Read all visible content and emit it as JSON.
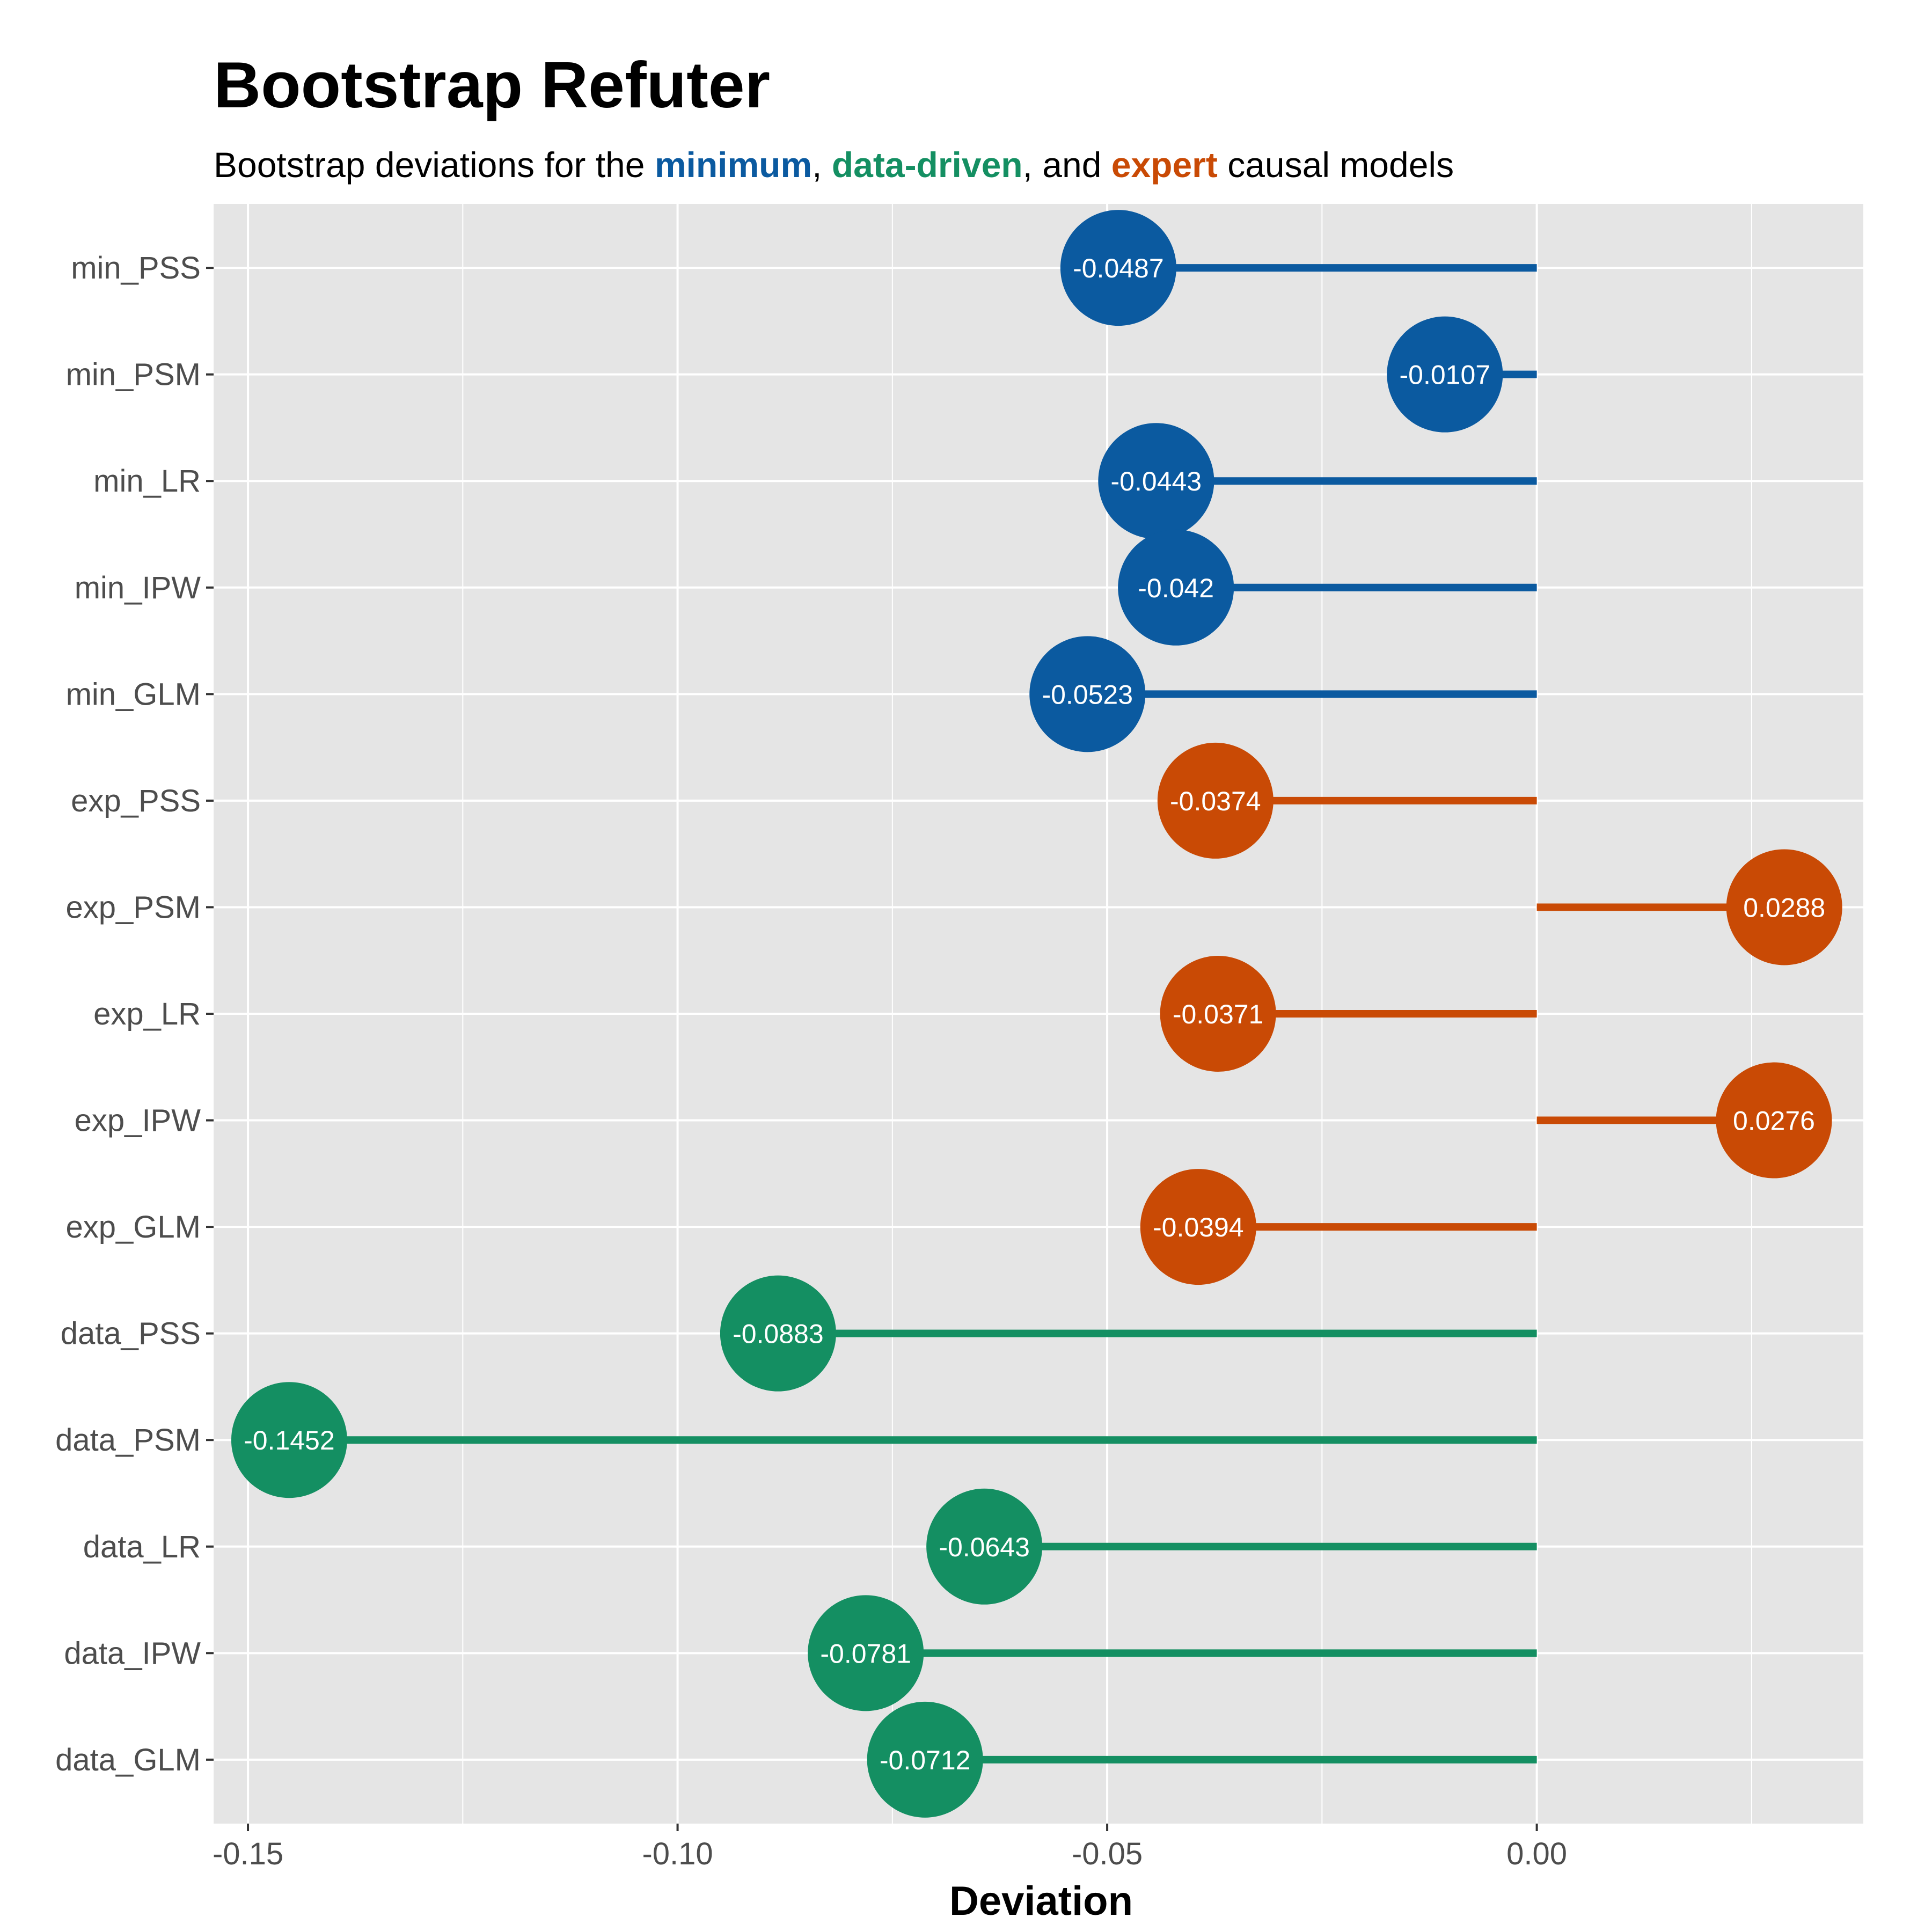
{
  "chart_data": {
    "type": "lollipop",
    "title": "Bootstrap Refuter",
    "subtitle": {
      "parts": [
        {
          "text": "Bootstrap deviations for the ",
          "color": "#000000",
          "bold": false
        },
        {
          "text": "minimum",
          "color": "#0b5aa0",
          "bold": true
        },
        {
          "text": ", ",
          "color": "#000000",
          "bold": false
        },
        {
          "text": "data-driven",
          "color": "#148f62",
          "bold": true
        },
        {
          "text": ", and ",
          "color": "#000000",
          "bold": false
        },
        {
          "text": "expert",
          "color": "#c94a05",
          "bold": true
        },
        {
          "text": " causal models",
          "color": "#000000",
          "bold": false
        }
      ]
    },
    "xlabel": "Deviation",
    "ylabel": "",
    "xlim": [
      -0.154,
      0.038
    ],
    "xticks": [
      -0.15,
      -0.1,
      -0.05,
      0.0
    ],
    "xtick_labels": [
      "-0.15",
      "-0.10",
      "-0.05",
      "0.00"
    ],
    "grid": true,
    "colors": {
      "minimum": "#0b5aa0",
      "expert": "#c94a05",
      "data-driven": "#148f62",
      "panel": "#e5e5e5",
      "grid": "#ffffff"
    },
    "points": [
      {
        "category": "min_PSS",
        "group": "minimum",
        "value": -0.0487,
        "label": "-0.0487"
      },
      {
        "category": "min_PSM",
        "group": "minimum",
        "value": -0.0107,
        "label": "-0.0107"
      },
      {
        "category": "min_LR",
        "group": "minimum",
        "value": -0.0443,
        "label": "-0.0443"
      },
      {
        "category": "min_IPW",
        "group": "minimum",
        "value": -0.042,
        "label": "-0.042"
      },
      {
        "category": "min_GLM",
        "group": "minimum",
        "value": -0.0523,
        "label": "-0.0523"
      },
      {
        "category": "exp_PSS",
        "group": "expert",
        "value": -0.0374,
        "label": "-0.0374"
      },
      {
        "category": "exp_PSM",
        "group": "expert",
        "value": 0.0288,
        "label": "0.0288"
      },
      {
        "category": "exp_LR",
        "group": "expert",
        "value": -0.0371,
        "label": "-0.0371"
      },
      {
        "category": "exp_IPW",
        "group": "expert",
        "value": 0.0276,
        "label": "0.0276"
      },
      {
        "category": "exp_GLM",
        "group": "expert",
        "value": -0.0394,
        "label": "-0.0394"
      },
      {
        "category": "data_PSS",
        "group": "data-driven",
        "value": -0.0883,
        "label": "-0.0883"
      },
      {
        "category": "data_PSM",
        "group": "data-driven",
        "value": -0.1452,
        "label": "-0.1452"
      },
      {
        "category": "data_LR",
        "group": "data-driven",
        "value": -0.0643,
        "label": "-0.0643"
      },
      {
        "category": "data_IPW",
        "group": "data-driven",
        "value": -0.0781,
        "label": "-0.0781"
      },
      {
        "category": "data_GLM",
        "group": "data-driven",
        "value": -0.0712,
        "label": "-0.0712"
      }
    ]
  }
}
